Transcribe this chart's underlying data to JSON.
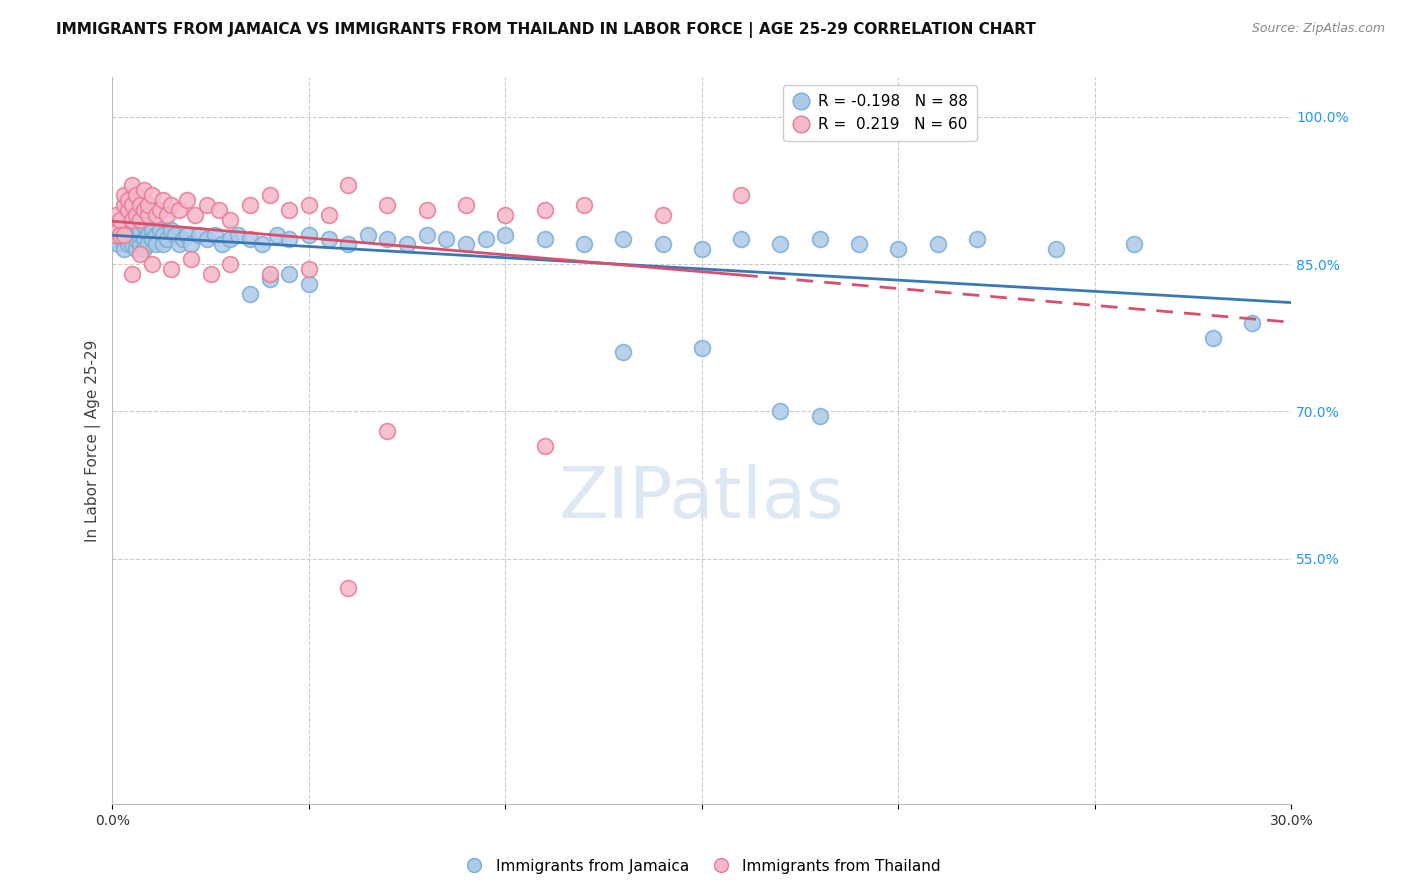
{
  "title": "IMMIGRANTS FROM JAMAICA VS IMMIGRANTS FROM THAILAND IN LABOR FORCE | AGE 25-29 CORRELATION CHART",
  "source": "Source: ZipAtlas.com",
  "ylabel": "In Labor Force | Age 25-29",
  "xlim": [
    0.0,
    0.3
  ],
  "ylim": [
    0.3,
    1.04
  ],
  "x_tick_positions": [
    0.0,
    0.05,
    0.1,
    0.15,
    0.2,
    0.25,
    0.3
  ],
  "x_tick_labels": [
    "0.0%",
    "",
    "",
    "",
    "",
    "",
    "30.0%"
  ],
  "y_ticks_right": [
    0.55,
    0.7,
    0.85,
    1.0
  ],
  "y_tick_labels_right": [
    "55.0%",
    "70.0%",
    "85.0%",
    "100.0%"
  ],
  "jamaica_color": "#adc9e8",
  "thailand_color": "#f5b8c8",
  "jamaica_edge": "#7aadd4",
  "thailand_edge": "#e87a96",
  "trend_jamaica_color": "#3a78b5",
  "trend_thailand_color": "#d94f6e",
  "watermark_text": "ZIPatlas",
  "watermark_color": "#d0dff0",
  "legend_label_1": "R = -0.198   N = 88",
  "legend_label_2": "R =  0.219   N = 60",
  "bottom_legend_1": "Immigrants from Jamaica",
  "bottom_legend_2": "Immigrants from Thailand",
  "jamaica_x": [
    0.0005,
    0.001,
    0.001,
    0.0015,
    0.002,
    0.002,
    0.0025,
    0.003,
    0.003,
    0.003,
    0.0035,
    0.004,
    0.004,
    0.004,
    0.005,
    0.005,
    0.005,
    0.005,
    0.006,
    0.006,
    0.006,
    0.007,
    0.007,
    0.007,
    0.008,
    0.008,
    0.008,
    0.009,
    0.009,
    0.01,
    0.01,
    0.011,
    0.011,
    0.012,
    0.013,
    0.013,
    0.014,
    0.015,
    0.016,
    0.017,
    0.018,
    0.019,
    0.02,
    0.022,
    0.024,
    0.026,
    0.028,
    0.03,
    0.032,
    0.035,
    0.038,
    0.042,
    0.045,
    0.05,
    0.055,
    0.06,
    0.065,
    0.07,
    0.075,
    0.08,
    0.085,
    0.09,
    0.095,
    0.1,
    0.11,
    0.12,
    0.13,
    0.14,
    0.15,
    0.16,
    0.17,
    0.18,
    0.19,
    0.2,
    0.21,
    0.22,
    0.24,
    0.26,
    0.045,
    0.05,
    0.13,
    0.15,
    0.035,
    0.04,
    0.17,
    0.18,
    0.28,
    0.29
  ],
  "jamaica_y": [
    0.88,
    0.875,
    0.885,
    0.87,
    0.88,
    0.89,
    0.875,
    0.865,
    0.885,
    0.895,
    0.88,
    0.87,
    0.885,
    0.89,
    0.875,
    0.87,
    0.88,
    0.895,
    0.865,
    0.875,
    0.89,
    0.87,
    0.88,
    0.885,
    0.875,
    0.865,
    0.89,
    0.88,
    0.87,
    0.885,
    0.875,
    0.88,
    0.87,
    0.885,
    0.88,
    0.87,
    0.875,
    0.885,
    0.88,
    0.87,
    0.875,
    0.88,
    0.87,
    0.88,
    0.875,
    0.88,
    0.87,
    0.875,
    0.88,
    0.875,
    0.87,
    0.88,
    0.875,
    0.88,
    0.875,
    0.87,
    0.88,
    0.875,
    0.87,
    0.88,
    0.875,
    0.87,
    0.875,
    0.88,
    0.875,
    0.87,
    0.875,
    0.87,
    0.865,
    0.875,
    0.87,
    0.875,
    0.87,
    0.865,
    0.87,
    0.875,
    0.865,
    0.87,
    0.84,
    0.83,
    0.76,
    0.765,
    0.82,
    0.835,
    0.7,
    0.695,
    0.775,
    0.79
  ],
  "thailand_x": [
    0.0005,
    0.001,
    0.001,
    0.0015,
    0.002,
    0.002,
    0.003,
    0.003,
    0.004,
    0.004,
    0.005,
    0.005,
    0.005,
    0.006,
    0.006,
    0.007,
    0.007,
    0.008,
    0.008,
    0.009,
    0.009,
    0.01,
    0.011,
    0.012,
    0.013,
    0.014,
    0.015,
    0.017,
    0.019,
    0.021,
    0.024,
    0.027,
    0.03,
    0.035,
    0.04,
    0.045,
    0.05,
    0.055,
    0.06,
    0.07,
    0.08,
    0.09,
    0.1,
    0.11,
    0.12,
    0.14,
    0.16,
    0.003,
    0.005,
    0.007,
    0.01,
    0.015,
    0.02,
    0.025,
    0.03,
    0.04,
    0.05,
    0.06,
    0.07,
    0.11
  ],
  "thailand_y": [
    0.88,
    0.89,
    0.9,
    0.885,
    0.895,
    0.88,
    0.91,
    0.92,
    0.905,
    0.915,
    0.895,
    0.91,
    0.93,
    0.9,
    0.92,
    0.91,
    0.895,
    0.905,
    0.925,
    0.9,
    0.91,
    0.92,
    0.9,
    0.905,
    0.915,
    0.9,
    0.91,
    0.905,
    0.915,
    0.9,
    0.91,
    0.905,
    0.895,
    0.91,
    0.92,
    0.905,
    0.91,
    0.9,
    0.93,
    0.91,
    0.905,
    0.91,
    0.9,
    0.905,
    0.91,
    0.9,
    0.92,
    0.88,
    0.84,
    0.86,
    0.85,
    0.845,
    0.855,
    0.84,
    0.85,
    0.84,
    0.845,
    0.52,
    0.68,
    0.665
  ]
}
